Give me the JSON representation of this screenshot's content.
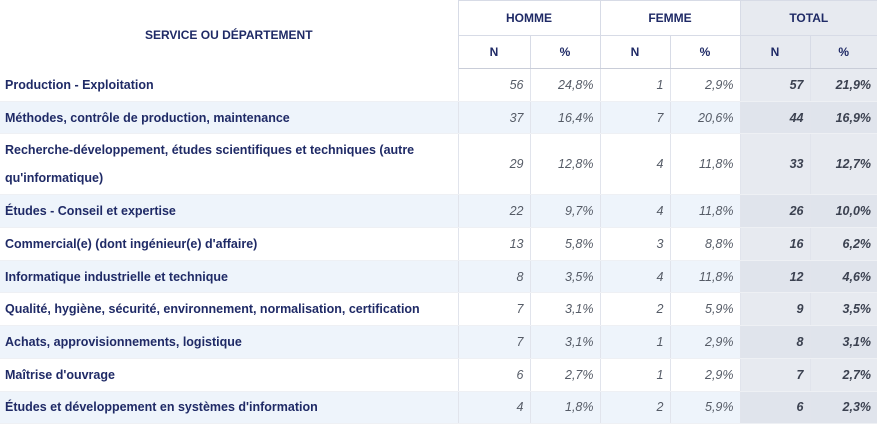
{
  "header": {
    "service_label": "SERVICE OU DÉPARTEMENT",
    "groups": [
      "HOMME",
      "FEMME",
      "TOTAL"
    ],
    "sub": [
      "N",
      "%",
      "N",
      "%",
      "N",
      "%"
    ]
  },
  "rows": [
    {
      "label": "Production - Exploitation",
      "h_n": "56",
      "h_p": "24,8%",
      "f_n": "1",
      "f_p": "2,9%",
      "t_n": "57",
      "t_p": "21,9%"
    },
    {
      "label": "Méthodes, contrôle de production, maintenance",
      "h_n": "37",
      "h_p": "16,4%",
      "f_n": "7",
      "f_p": "20,6%",
      "t_n": "44",
      "t_p": "16,9%"
    },
    {
      "label": "Recherche-développement, études scientifiques et techniques (autre qu'informatique)",
      "h_n": "29",
      "h_p": "12,8%",
      "f_n": "4",
      "f_p": "11,8%",
      "t_n": "33",
      "t_p": "12,7%"
    },
    {
      "label": "Études - Conseil et expertise",
      "h_n": "22",
      "h_p": "9,7%",
      "f_n": "4",
      "f_p": "11,8%",
      "t_n": "26",
      "t_p": "10,0%"
    },
    {
      "label": "Commercial(e) (dont ingénieur(e) d'affaire)",
      "h_n": "13",
      "h_p": "5,8%",
      "f_n": "3",
      "f_p": "8,8%",
      "t_n": "16",
      "t_p": "6,2%"
    },
    {
      "label": "Informatique industrielle et technique",
      "h_n": "8",
      "h_p": "3,5%",
      "f_n": "4",
      "f_p": "11,8%",
      "t_n": "12",
      "t_p": "4,6%"
    },
    {
      "label": "Qualité, hygiène, sécurité, environnement, normalisation, certification",
      "h_n": "7",
      "h_p": "3,1%",
      "f_n": "2",
      "f_p": "5,9%",
      "t_n": "9",
      "t_p": "3,5%"
    },
    {
      "label": "Achats, approvisionnements, logistique",
      "h_n": "7",
      "h_p": "3,1%",
      "f_n": "1",
      "f_p": "2,9%",
      "t_n": "8",
      "t_p": "3,1%"
    },
    {
      "label": "Maîtrise d'ouvrage",
      "h_n": "6",
      "h_p": "2,7%",
      "f_n": "1",
      "f_p": "2,9%",
      "t_n": "7",
      "t_p": "2,7%"
    },
    {
      "label": "Études et développement en systèmes d'information",
      "h_n": "4",
      "h_p": "1,8%",
      "f_n": "2",
      "f_p": "5,9%",
      "t_n": "6",
      "t_p": "2,3%"
    }
  ]
}
